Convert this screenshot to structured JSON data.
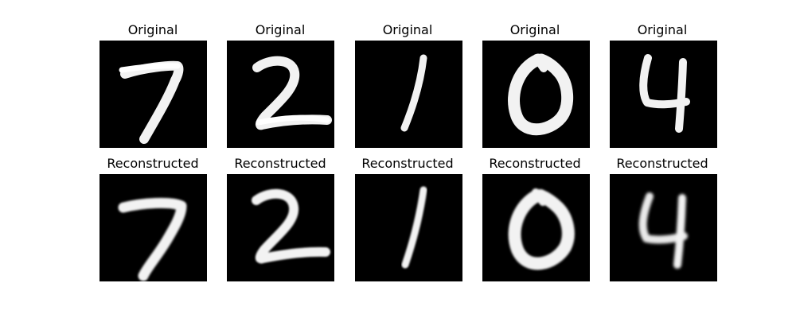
{
  "figure": {
    "background": "#ffffff",
    "image_background": "#000000",
    "digit_color": "#f2f2f2",
    "rows": [
      {
        "name": "original",
        "title": "Original",
        "digits": [
          "7",
          "2",
          "1",
          "0",
          "4"
        ]
      },
      {
        "name": "reconstructed",
        "title": "Reconstructed",
        "digits": [
          "7",
          "2",
          "1",
          "0",
          "4"
        ]
      }
    ]
  }
}
